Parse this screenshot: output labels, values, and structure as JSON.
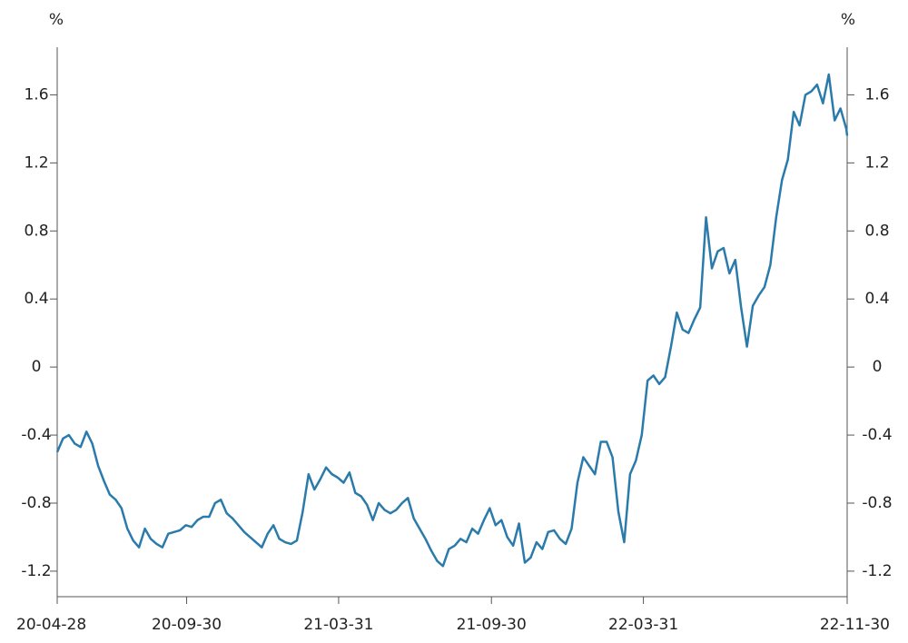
{
  "chart_data": {
    "type": "line",
    "y_label": "%",
    "y2_label": "%",
    "x": [
      "20-04-28",
      "20-05-05",
      "20-05-12",
      "20-05-19",
      "20-05-26",
      "20-06-02",
      "20-06-09",
      "20-06-16",
      "20-06-23",
      "20-06-30",
      "20-07-07",
      "20-07-14",
      "20-07-21",
      "20-07-28",
      "20-08-04",
      "20-08-11",
      "20-08-18",
      "20-08-25",
      "20-09-01",
      "20-09-08",
      "20-09-15",
      "20-09-22",
      "20-09-29",
      "20-10-06",
      "20-10-13",
      "20-10-20",
      "20-10-27",
      "20-11-03",
      "20-11-10",
      "20-11-17",
      "20-11-24",
      "20-12-01",
      "20-12-08",
      "20-12-15",
      "20-12-22",
      "20-12-29",
      "21-01-05",
      "21-01-12",
      "21-01-19",
      "21-01-26",
      "21-02-02",
      "21-02-09",
      "21-02-16",
      "21-02-23",
      "21-03-02",
      "21-03-09",
      "21-03-16",
      "21-03-23",
      "21-03-30",
      "21-04-06",
      "21-04-13",
      "21-04-20",
      "21-04-27",
      "21-05-04",
      "21-05-11",
      "21-05-18",
      "21-05-25",
      "21-06-01",
      "21-06-08",
      "21-06-15",
      "21-06-22",
      "21-06-29",
      "21-07-06",
      "21-07-13",
      "21-07-20",
      "21-07-27",
      "21-08-03",
      "21-08-10",
      "21-08-17",
      "21-08-24",
      "21-08-31",
      "21-09-07",
      "21-09-14",
      "21-09-21",
      "21-09-28",
      "21-10-05",
      "21-10-12",
      "21-10-19",
      "21-10-26",
      "21-11-02",
      "21-11-09",
      "21-11-16",
      "21-11-23",
      "21-11-30",
      "21-12-07",
      "21-12-14",
      "21-12-21",
      "21-12-28",
      "22-01-04",
      "22-01-11",
      "22-01-18",
      "22-01-25",
      "22-02-01",
      "22-02-08",
      "22-02-15",
      "22-02-22",
      "22-03-01",
      "22-03-08",
      "22-03-15",
      "22-03-22",
      "22-03-29",
      "22-04-05",
      "22-04-12",
      "22-04-19",
      "22-04-26",
      "22-05-03",
      "22-05-10",
      "22-05-17",
      "22-05-24",
      "22-05-31",
      "22-06-07",
      "22-06-14",
      "22-06-21",
      "22-06-28",
      "22-07-05",
      "22-07-12",
      "22-07-19",
      "22-07-26",
      "22-08-02",
      "22-08-09",
      "22-08-16",
      "22-08-23",
      "22-08-30",
      "22-09-06",
      "22-09-13",
      "22-09-20",
      "22-09-27",
      "22-10-04",
      "22-10-11",
      "22-10-18",
      "22-10-25",
      "22-11-01",
      "22-11-08",
      "22-11-15",
      "22-11-22",
      "22-11-29",
      "22-11-30"
    ],
    "series": [
      {
        "color": "#2a7bab",
        "values": [
          -0.5,
          -0.42,
          -0.4,
          -0.45,
          -0.47,
          -0.38,
          -0.45,
          -0.58,
          -0.67,
          -0.75,
          -0.78,
          -0.83,
          -0.95,
          -1.02,
          -1.06,
          -0.95,
          -1.01,
          -1.04,
          -1.06,
          -0.98,
          -0.97,
          -0.96,
          -0.93,
          -0.94,
          -0.9,
          -0.88,
          -0.88,
          -0.8,
          -0.78,
          -0.86,
          -0.89,
          -0.93,
          -0.97,
          -1.0,
          -1.03,
          -1.06,
          -0.98,
          -0.93,
          -1.01,
          -1.03,
          -1.04,
          -1.02,
          -0.85,
          -0.63,
          -0.72,
          -0.66,
          -0.59,
          -0.63,
          -0.65,
          -0.68,
          -0.62,
          -0.74,
          -0.76,
          -0.81,
          -0.9,
          -0.8,
          -0.84,
          -0.86,
          -0.84,
          -0.8,
          -0.77,
          -0.89,
          -0.95,
          -1.01,
          -1.08,
          -1.14,
          -1.17,
          -1.07,
          -1.05,
          -1.01,
          -1.03,
          -0.95,
          -0.98,
          -0.9,
          -0.83,
          -0.93,
          -0.9,
          -1.0,
          -1.05,
          -0.92,
          -1.15,
          -1.12,
          -1.03,
          -1.07,
          -0.97,
          -0.96,
          -1.01,
          -1.04,
          -0.95,
          -0.68,
          -0.53,
          -0.58,
          -0.63,
          -0.44,
          -0.44,
          -0.53,
          -0.85,
          -1.03,
          -0.63,
          -0.55,
          -0.4,
          -0.08,
          -0.05,
          -0.1,
          -0.06,
          0.12,
          0.32,
          0.22,
          0.2,
          0.28,
          0.35,
          0.88,
          0.58,
          0.68,
          0.7,
          0.55,
          0.63,
          0.35,
          0.12,
          0.36,
          0.42,
          0.47,
          0.6,
          0.88,
          1.1,
          1.22,
          1.5,
          1.42,
          1.6,
          1.62,
          1.66,
          1.55,
          1.72,
          1.45,
          1.52,
          1.4,
          1.36
        ]
      }
    ],
    "xlim": [
      "20-04-28",
      "22-11-30"
    ],
    "xticks": [
      "20-04-28",
      "20-09-30",
      "21-03-31",
      "21-09-30",
      "22-03-31",
      "22-11-30"
    ],
    "ylim": [
      -1.35,
      1.88
    ],
    "yticks": [
      -1.2,
      -0.8,
      -0.4,
      0,
      0.4,
      0.8,
      1.2,
      1.6
    ],
    "y2lim": [
      -1.35,
      1.88
    ],
    "y2ticks": [
      -1.2,
      -0.8,
      -0.4,
      0,
      0.4,
      0.8,
      1.2,
      1.6
    ]
  }
}
